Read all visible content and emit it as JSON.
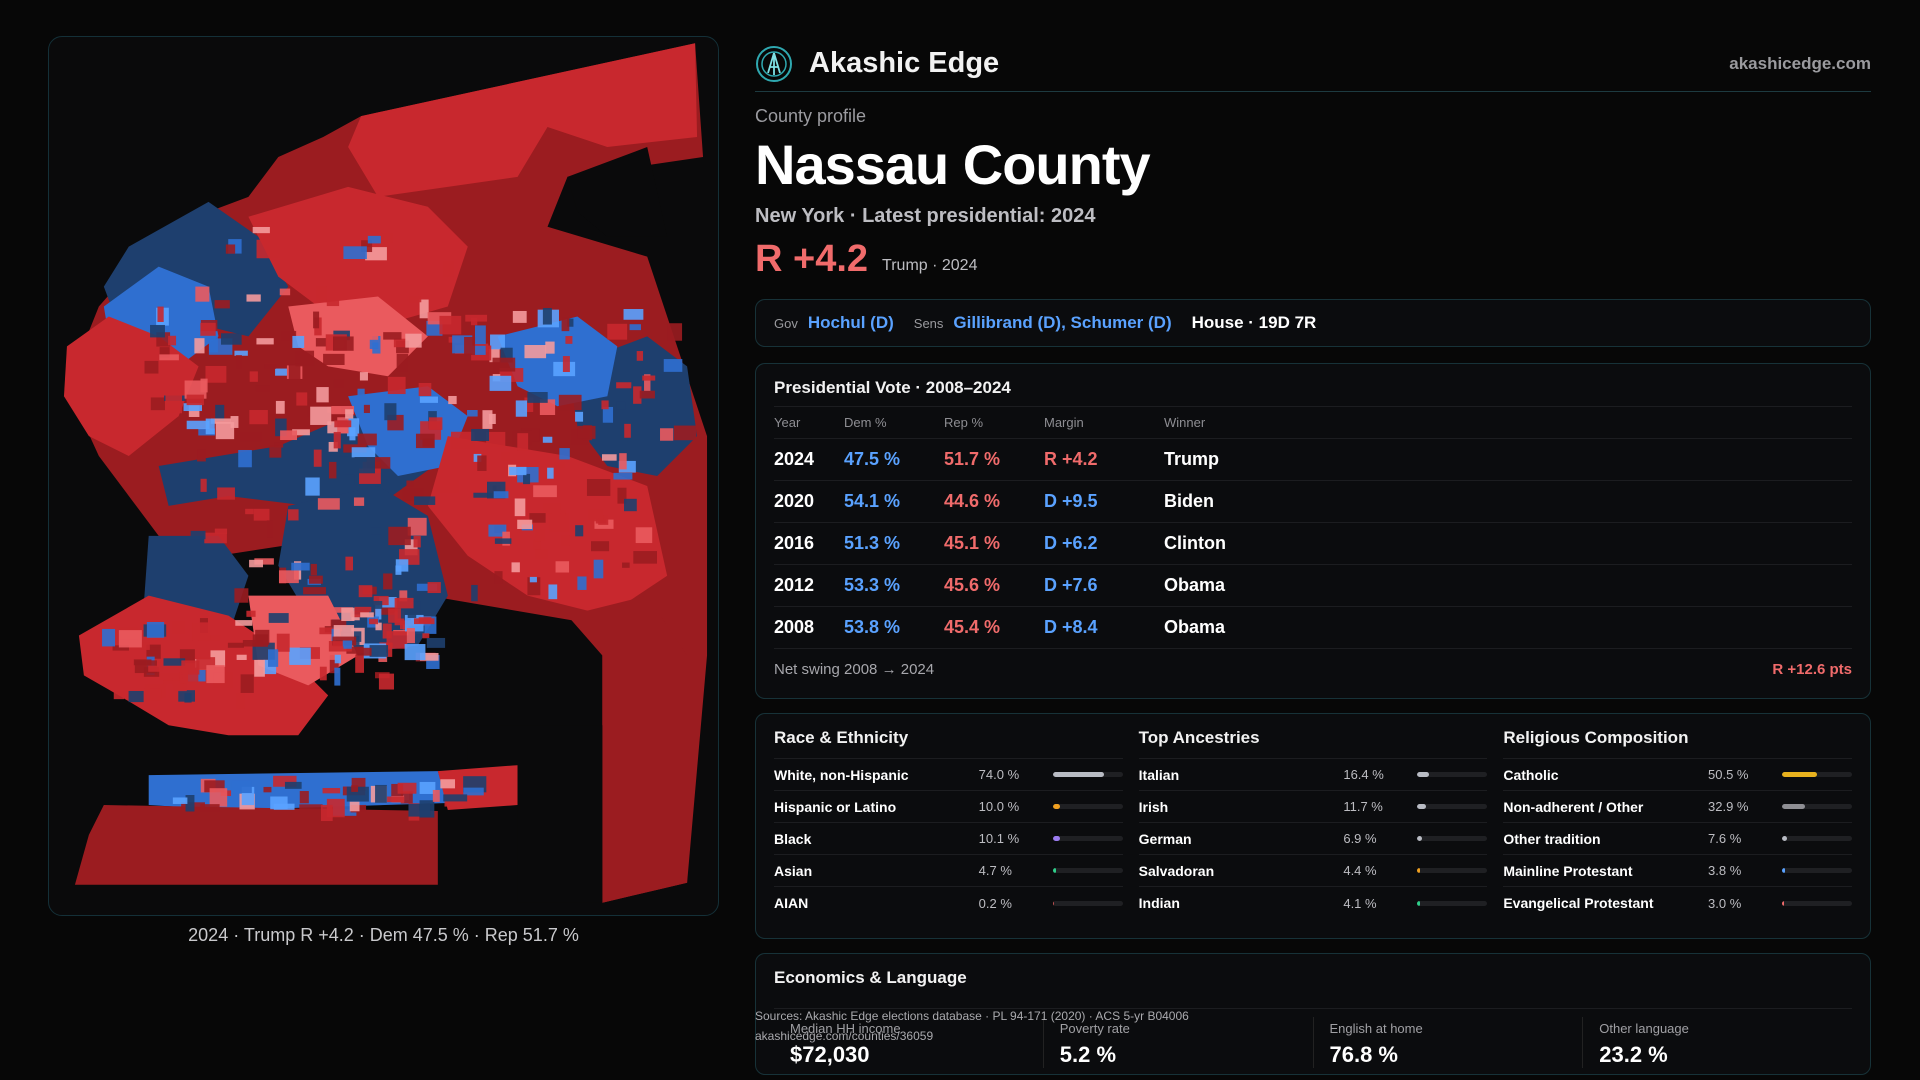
{
  "brand": {
    "name": "Akashic Edge",
    "site": "akashicedge.com"
  },
  "profile": {
    "eyebrow": "County profile",
    "title": "Nassau County",
    "subtitle": "New York · Latest presidential: 2024",
    "margin": "R +4.2",
    "margin_note": "Trump · 2024"
  },
  "officials": {
    "gov_label": "Gov",
    "gov": "Hochul (D)",
    "sens_label": "Sens",
    "sens": "Gillibrand (D), Schumer (D)",
    "house": "House · 19D 7R"
  },
  "presidential": {
    "title": "Presidential Vote · 2008–2024",
    "headers": [
      "Year",
      "Dem %",
      "Rep %",
      "Margin",
      "Winner"
    ],
    "rows": [
      {
        "year": "2024",
        "dem": "47.5 %",
        "rep": "51.7 %",
        "margin": "R +4.2",
        "winner": "Trump",
        "party": "R"
      },
      {
        "year": "2020",
        "dem": "54.1 %",
        "rep": "44.6 %",
        "margin": "D +9.5",
        "winner": "Biden",
        "party": "D"
      },
      {
        "year": "2016",
        "dem": "51.3 %",
        "rep": "45.1 %",
        "margin": "D +6.2",
        "winner": "Clinton",
        "party": "D"
      },
      {
        "year": "2012",
        "dem": "53.3 %",
        "rep": "45.6 %",
        "margin": "D +7.6",
        "winner": "Obama",
        "party": "D"
      },
      {
        "year": "2008",
        "dem": "53.8 %",
        "rep": "45.4 %",
        "margin": "D +8.4",
        "winner": "Obama",
        "party": "D"
      }
    ],
    "swing_label": "Net swing 2008 → 2024",
    "swing_value": "R +12.6 pts"
  },
  "race": {
    "title": "Race & Ethnicity",
    "rows": [
      {
        "label": "White, non-Hispanic",
        "pct": "74.0 %",
        "value": 74.0,
        "color": "#b9bcc4"
      },
      {
        "label": "Hispanic or Latino",
        "pct": "10.0 %",
        "value": 10.0,
        "color": "#f0a020"
      },
      {
        "label": "Black",
        "pct": "10.1 %",
        "value": 10.1,
        "color": "#9b7cf0"
      },
      {
        "label": "Asian",
        "pct": "4.7 %",
        "value": 4.7,
        "color": "#2fcf8a"
      },
      {
        "label": "AIAN",
        "pct": "0.2 %",
        "value": 0.2,
        "color": "#c05050"
      }
    ]
  },
  "ancestry": {
    "title": "Top Ancestries",
    "rows": [
      {
        "label": "Italian",
        "pct": "16.4 %",
        "value": 16.4,
        "color": "#b9bcc4"
      },
      {
        "label": "Irish",
        "pct": "11.7 %",
        "value": 11.7,
        "color": "#b9bcc4"
      },
      {
        "label": "German",
        "pct": "6.9 %",
        "value": 6.9,
        "color": "#b9bcc4"
      },
      {
        "label": "Salvadoran",
        "pct": "4.4 %",
        "value": 4.4,
        "color": "#f0a020"
      },
      {
        "label": "Indian",
        "pct": "4.1 %",
        "value": 4.1,
        "color": "#2fcf8a"
      }
    ]
  },
  "religion": {
    "title": "Religious Composition",
    "rows": [
      {
        "label": "Catholic",
        "pct": "50.5 %",
        "value": 50.5,
        "color": "#e8b21e"
      },
      {
        "label": "Non-adherent / Other",
        "pct": "32.9 %",
        "value": 32.9,
        "color": "#8e8e93"
      },
      {
        "label": "Other tradition",
        "pct": "7.6 %",
        "value": 7.6,
        "color": "#b9bcc4"
      },
      {
        "label": "Mainline Protestant",
        "pct": "3.8 %",
        "value": 3.8,
        "color": "#5aa2ff"
      },
      {
        "label": "Evangelical Protestant",
        "pct": "3.0 %",
        "value": 3.0,
        "color": "#f06b6b"
      }
    ]
  },
  "economics": {
    "title": "Economics & Language",
    "items": [
      {
        "label": "Median HH income",
        "value": "$72,030"
      },
      {
        "label": "Poverty rate",
        "value": "5.2 %"
      },
      {
        "label": "English at home",
        "value": "76.8 %"
      },
      {
        "label": "Other language",
        "value": "23.2 %"
      }
    ]
  },
  "sources": {
    "line1": "Sources: Akashic Edge elections database · PL 94-171 (2020) · ACS 5-yr B04006",
    "line2": "akashicedge.com/counties/36059"
  },
  "map": {
    "caption": "2024 · Trump R +4.2 · Dem 47.5 % · Rep 51.7 %",
    "colors": {
      "deep_red": "#9b1c20",
      "red": "#c8282e",
      "light_red": "#ea5a5e",
      "pink": "#f49a9c",
      "deep_blue": "#1e3f6e",
      "blue": "#2f6fd0",
      "light_blue": "#5aa2ff",
      "white": "#e8e8ea"
    }
  }
}
